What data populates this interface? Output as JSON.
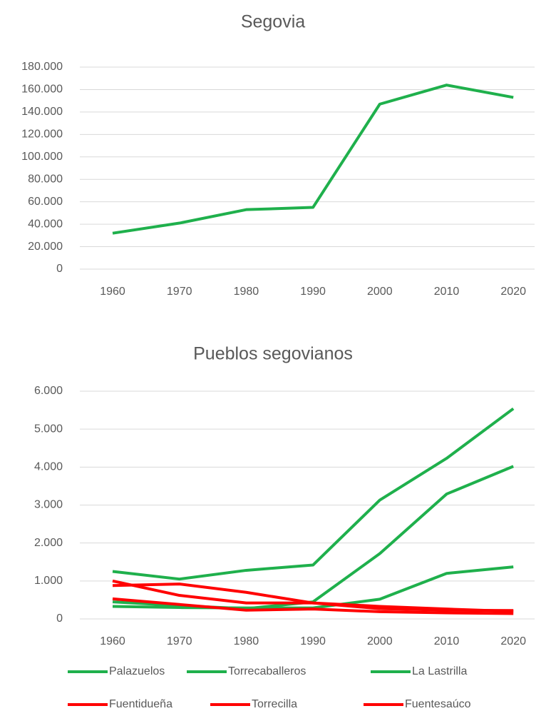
{
  "chart_data": [
    {
      "type": "line",
      "title": "Segovia",
      "categories": [
        "1960",
        "1970",
        "1980",
        "1990",
        "2000",
        "2010",
        "2020"
      ],
      "series": [
        {
          "name": "Segovia",
          "color": "#1fb04c",
          "values": [
            32000,
            41000,
            53000,
            55000,
            147000,
            164000,
            153000
          ]
        }
      ],
      "ylim": [
        0,
        180000
      ],
      "yticks": [
        0,
        {
          "value": 20000,
          "label": "20.000"
        },
        {
          "value": 40000,
          "label": "40.000"
        },
        {
          "value": 60000,
          "label": "60.000"
        },
        {
          "value": 80000,
          "label": "80.000"
        },
        {
          "value": 100000,
          "label": "100.000"
        },
        {
          "value": 120000,
          "label": "120.000"
        },
        {
          "value": 140000,
          "label": "140.000"
        },
        {
          "value": 160000,
          "label": "160.000"
        },
        {
          "value": 180000,
          "label": "180.000"
        }
      ],
      "grid": true,
      "legend": false
    },
    {
      "type": "line",
      "title": "Pueblos segovianos",
      "categories": [
        "1960",
        "1970",
        "1980",
        "1990",
        "2000",
        "2010",
        "2020"
      ],
      "series": [
        {
          "name": "Palazuelos",
          "color": "#1fb04c",
          "values": [
            1250,
            1050,
            1280,
            1420,
            3130,
            4230,
            5540
          ]
        },
        {
          "name": "Torrecaballeros",
          "color": "#1fb04c",
          "values": [
            450,
            350,
            270,
            450,
            1720,
            3290,
            4020
          ]
        },
        {
          "name": "La Lastrilla",
          "color": "#1fb04c",
          "values": [
            330,
            300,
            290,
            290,
            520,
            1200,
            1370
          ]
        },
        {
          "name": "Fuentidueña",
          "color": "#ff0000",
          "values": [
            1000,
            620,
            420,
            420,
            330,
            260,
            200
          ]
        },
        {
          "name": "Torrecilla",
          "color": "#ff0000",
          "values": [
            880,
            920,
            700,
            420,
            270,
            230,
            220
          ]
        },
        {
          "name": "Fuentesaúco",
          "color": "#ff0000",
          "values": [
            530,
            380,
            230,
            260,
            190,
            160,
            140
          ]
        }
      ],
      "ylim": [
        0,
        6000
      ],
      "yticks": [
        0,
        {
          "value": 1000,
          "label": "1.000"
        },
        {
          "value": 2000,
          "label": "2.000"
        },
        {
          "value": 3000,
          "label": "3.000"
        },
        {
          "value": 4000,
          "label": "4.000"
        },
        {
          "value": 5000,
          "label": "5.000"
        },
        {
          "value": 6000,
          "label": "6.000"
        }
      ],
      "grid": true,
      "legend": "bottom"
    }
  ]
}
